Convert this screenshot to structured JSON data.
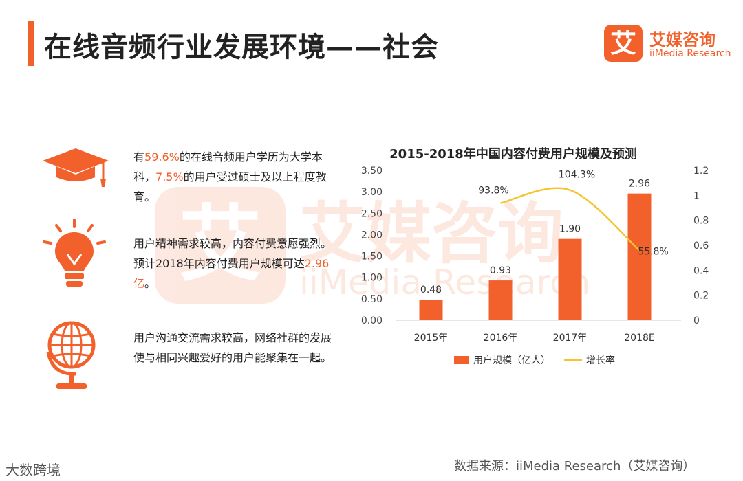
{
  "header": {
    "title": "在线音频行业发展环境——社会"
  },
  "brand": {
    "mark": "艾",
    "name_cn": "艾媒咨询",
    "name_en": "iiMedia Research",
    "color": "#f2612b"
  },
  "points": [
    {
      "icon": "graduation-cap-icon",
      "parts": [
        "有",
        "59.6%",
        "的在线音频用户学历为大学本科，",
        "7.5%",
        "的用户受过硕士及以上程度教育。"
      ]
    },
    {
      "icon": "lightbulb-icon",
      "parts": [
        "用户精神需求较高，内容付费意愿强烈。预计2018年内容付费用户规模可达",
        "2.96亿",
        "。"
      ]
    },
    {
      "icon": "globe-icon",
      "parts": [
        "用户沟通交流需求较高，网络社群的发展使与相同兴趣爱好的用户能聚集在一起。"
      ]
    }
  ],
  "chart_data": {
    "type": "bar",
    "title": "2015-2018年中国内容付费用户规模及预测",
    "categories": [
      "2015年",
      "2016年",
      "2017年",
      "2018E"
    ],
    "series": [
      {
        "name": "用户规模（亿人）",
        "type": "bar",
        "axis": "left",
        "values": [
          0.48,
          0.93,
          1.9,
          2.96
        ],
        "labels": [
          "0.48",
          "0.93",
          "1.90",
          "2.96"
        ],
        "color": "#f2612b"
      },
      {
        "name": "增长率",
        "type": "line",
        "axis": "right",
        "values": [
          null,
          0.938,
          1.043,
          0.558
        ],
        "labels": [
          "",
          "93.8%",
          "104.3%",
          "55.8%"
        ],
        "color": "#f5c531"
      }
    ],
    "ylim_left": [
      0,
      3.5
    ],
    "yticks_left": [
      "0.00",
      "0.50",
      "1.00",
      "1.50",
      "2.00",
      "2.50",
      "3.00",
      "3.50"
    ],
    "ylim_right": [
      0,
      1.2
    ],
    "yticks_right": [
      "0",
      "0.2",
      "0.4",
      "0.6",
      "0.8",
      "1",
      "1.2"
    ],
    "legend_position": "bottom",
    "grid": false
  },
  "footer": {
    "source": "数据来源：iiMedia Research（艾媒咨询）",
    "watermark_logo": "大数跨境"
  }
}
